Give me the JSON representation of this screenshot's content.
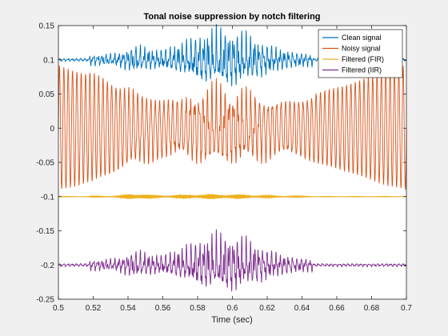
{
  "chart_data": {
    "type": "line",
    "title": "Tonal noise suppression by notch filtering",
    "xlabel": "Time (sec)",
    "ylabel": "",
    "xlim": [
      0.5,
      0.7
    ],
    "ylim": [
      -0.25,
      0.15
    ],
    "xticks": [
      0.5,
      0.52,
      0.54,
      0.56,
      0.58,
      0.6,
      0.62,
      0.64,
      0.66,
      0.68,
      0.7
    ],
    "xtick_labels": [
      "0.5",
      "0.52",
      "0.54",
      "0.56",
      "0.58",
      "0.6",
      "0.62",
      "0.64",
      "0.66",
      "0.68",
      "0.7"
    ],
    "yticks": [
      -0.25,
      -0.2,
      -0.15,
      -0.1,
      -0.05,
      0,
      0.05,
      0.1,
      0.15
    ],
    "ytick_labels": [
      "-0.25",
      "-0.2",
      "-0.15",
      "-0.1",
      "-0.05",
      "0",
      "0.05",
      "0.1",
      "0.15"
    ],
    "grid": false,
    "legend_position": "top-right",
    "series": [
      {
        "name": "Clean signal",
        "color": "#0072BD",
        "offset": 0.1,
        "kind": "speech"
      },
      {
        "name": "Noisy signal",
        "color": "#D95319",
        "offset": 0.0,
        "kind": "tone"
      },
      {
        "name": "Filtered (FIR)",
        "color": "#EDB120",
        "offset": -0.1,
        "kind": "fir"
      },
      {
        "name": "Filtered (IIR)",
        "color": "#7E2F8E",
        "offset": -0.2,
        "kind": "speech"
      }
    ]
  }
}
